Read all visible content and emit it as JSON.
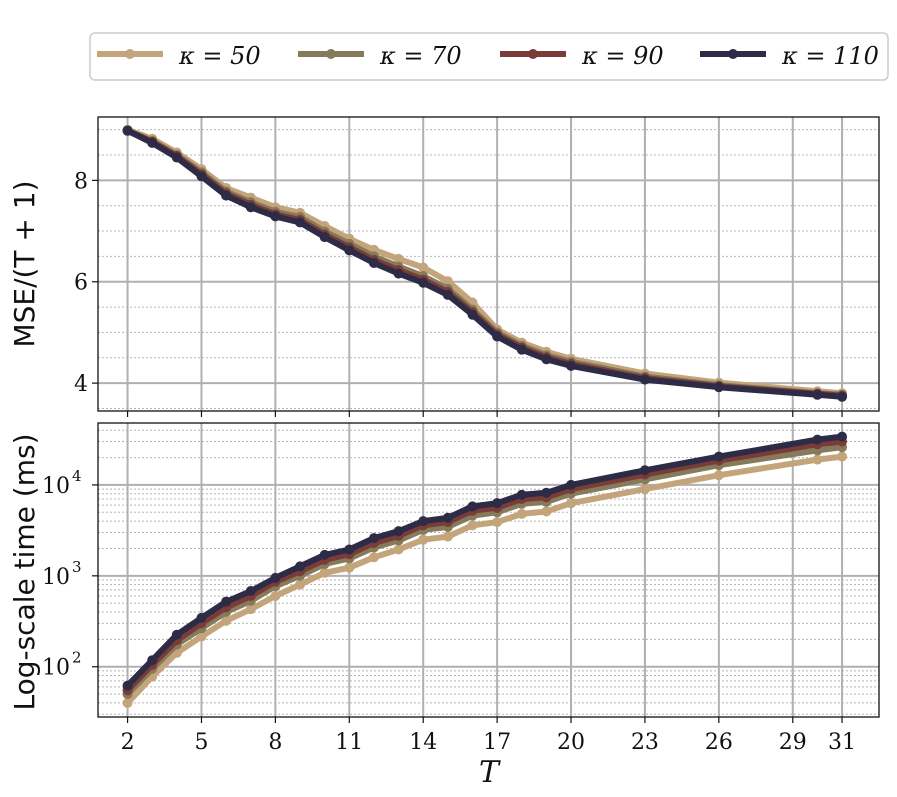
{
  "chart_data": [
    {
      "type": "line",
      "panel": "top",
      "ylabel": "MSE/(T + 1)",
      "xlabel": "",
      "ylim": [
        3.45,
        9.25
      ],
      "xlim": [
        0.8,
        32.5
      ],
      "yticks": [
        4,
        6,
        8
      ],
      "ytick_labels": [
        "4",
        "6",
        "8"
      ],
      "grid": true,
      "x": [
        2,
        3,
        4,
        5,
        6,
        7,
        8,
        9,
        10,
        11,
        12,
        13,
        14,
        15,
        16,
        17,
        18,
        19,
        20,
        23,
        26,
        30,
        31
      ],
      "series": [
        {
          "name": "κ = 50",
          "color": "#c4a57b",
          "values": [
            9.0,
            8.82,
            8.55,
            8.22,
            7.85,
            7.66,
            7.47,
            7.36,
            7.1,
            6.85,
            6.63,
            6.45,
            6.28,
            6.01,
            5.59,
            5.06,
            4.8,
            4.62,
            4.48,
            4.19,
            4.01,
            3.84,
            3.8
          ]
        },
        {
          "name": "κ = 70",
          "color": "#857b5a",
          "values": [
            8.98,
            8.78,
            8.5,
            8.16,
            7.78,
            7.57,
            7.38,
            7.28,
            6.99,
            6.75,
            6.5,
            6.3,
            6.11,
            5.86,
            5.45,
            5.0,
            4.74,
            4.55,
            4.42,
            4.13,
            3.96,
            3.8,
            3.77
          ]
        },
        {
          "name": "κ = 90",
          "color": "#7a3c38",
          "values": [
            8.98,
            8.76,
            8.48,
            8.12,
            7.74,
            7.52,
            7.33,
            7.22,
            6.93,
            6.68,
            6.43,
            6.23,
            6.04,
            5.8,
            5.4,
            4.96,
            4.7,
            4.51,
            4.38,
            4.1,
            3.94,
            3.79,
            3.75
          ]
        },
        {
          "name": "κ = 110",
          "color": "#2d2b45",
          "values": [
            8.98,
            8.74,
            8.45,
            8.08,
            7.7,
            7.47,
            7.29,
            7.17,
            6.88,
            6.62,
            6.37,
            6.16,
            5.98,
            5.74,
            5.35,
            4.92,
            4.66,
            4.47,
            4.34,
            4.07,
            3.92,
            3.77,
            3.73
          ]
        }
      ]
    },
    {
      "type": "line",
      "panel": "bottom",
      "ylabel": "Log-scale time (ms)",
      "xlabel": "T",
      "yscale": "log",
      "ylim": [
        28,
        48000
      ],
      "xlim": [
        0.8,
        32.5
      ],
      "yticks": [
        100,
        1000,
        10000
      ],
      "ytick_labels": [
        "10",
        "10",
        "10"
      ],
      "ytick_exponents": [
        "2",
        "3",
        "4"
      ],
      "xticks": [
        2,
        5,
        8,
        11,
        14,
        17,
        20,
        23,
        26,
        29,
        31
      ],
      "xtick_labels": [
        "2",
        "5",
        "8",
        "11",
        "14",
        "17",
        "20",
        "23",
        "26",
        "29",
        "31"
      ],
      "grid": true,
      "x": [
        2,
        3,
        4,
        5,
        6,
        7,
        8,
        9,
        10,
        11,
        12,
        13,
        14,
        15,
        16,
        17,
        18,
        19,
        20,
        23,
        26,
        30,
        31
      ],
      "series": [
        {
          "name": "κ = 50",
          "color": "#c4a57b",
          "values": [
            40,
            78,
            142,
            215,
            320,
            430,
            600,
            800,
            1080,
            1230,
            1600,
            1950,
            2500,
            2700,
            3600,
            3900,
            4800,
            5100,
            6300,
            9000,
            12800,
            19000,
            20500
          ]
        },
        {
          "name": "κ = 70",
          "color": "#857b5a",
          "values": [
            50,
            95,
            175,
            265,
            400,
            530,
            770,
            1000,
            1350,
            1550,
            2050,
            2450,
            3200,
            3450,
            4600,
            5000,
            6200,
            6500,
            8000,
            11500,
            16500,
            24000,
            26000
          ]
        },
        {
          "name": "κ = 90",
          "color": "#7a3c38",
          "values": [
            55,
            105,
            195,
            300,
            450,
            600,
            860,
            1120,
            1500,
            1730,
            2300,
            2750,
            3600,
            3900,
            5200,
            5600,
            7000,
            7300,
            9000,
            13000,
            18500,
            28000,
            30000
          ]
        },
        {
          "name": "κ = 110",
          "color": "#2d2b45",
          "values": [
            62,
            118,
            225,
            345,
            520,
            680,
            950,
            1270,
            1700,
            1950,
            2600,
            3100,
            4000,
            4350,
            5800,
            6300,
            7800,
            8200,
            10000,
            14500,
            20500,
            31500,
            34000
          ]
        }
      ]
    }
  ],
  "legend": {
    "placement": "top-center",
    "items": [
      {
        "label": "κ = 50",
        "color": "#c4a57b"
      },
      {
        "label": "κ = 70",
        "color": "#857b5a"
      },
      {
        "label": "κ = 90",
        "color": "#7a3c38"
      },
      {
        "label": "κ = 110",
        "color": "#2d2b45"
      }
    ]
  }
}
